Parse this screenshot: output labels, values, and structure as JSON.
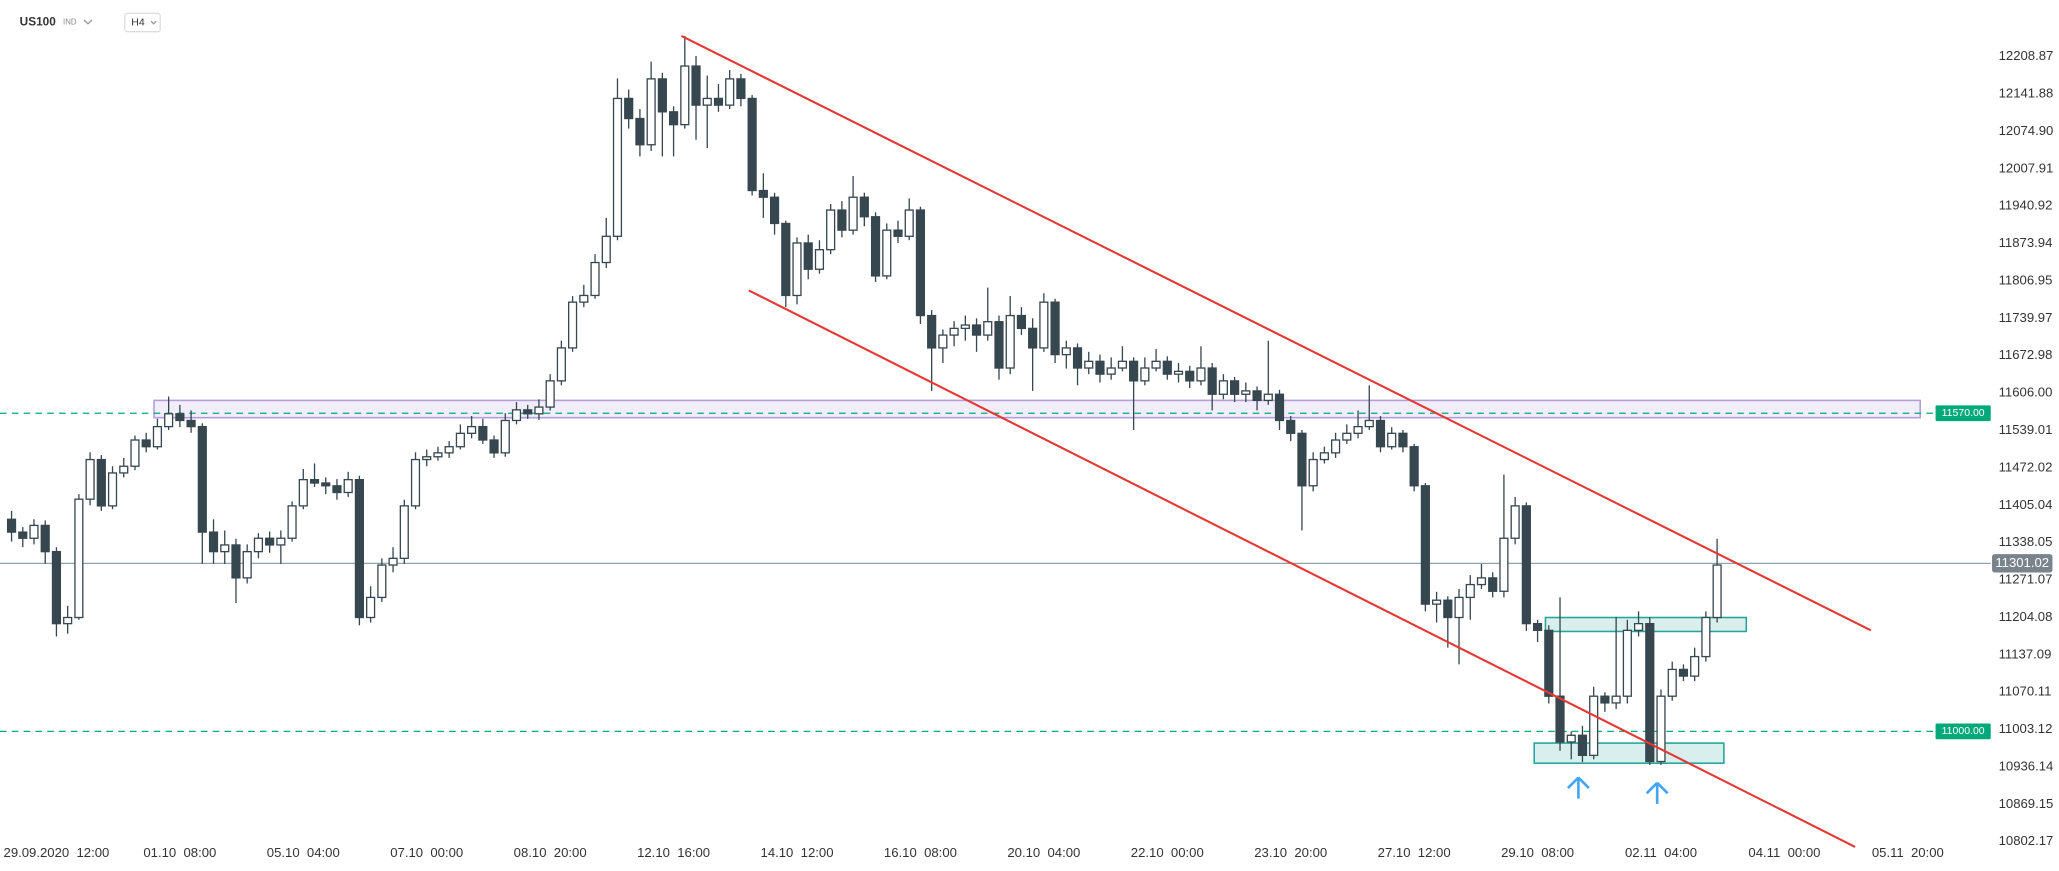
{
  "chart_data": {
    "type": "candlestick",
    "title": "US100",
    "subtitle": "IND",
    "timeframe": "H4",
    "categories": [
      null,
      null,
      null,
      null,
      "29.09.2020  12:00",
      null,
      null,
      null,
      null,
      null,
      null,
      null,
      null,
      null,
      null,
      "01.10  08:00",
      null,
      null,
      null,
      null,
      null,
      null,
      null,
      null,
      null,
      null,
      "05.10  04:00",
      null,
      null,
      null,
      null,
      null,
      null,
      null,
      null,
      null,
      null,
      "07.10  00:00",
      null,
      null,
      null,
      null,
      null,
      null,
      null,
      null,
      null,
      null,
      "08.10  20:00",
      null,
      null,
      null,
      null,
      null,
      null,
      null,
      null,
      null,
      null,
      "12.10  16:00",
      null,
      null,
      null,
      null,
      null,
      null,
      null,
      null,
      null,
      null,
      "14.10  12:00",
      null,
      null,
      null,
      null,
      null,
      null,
      null,
      null,
      null,
      null,
      "16.10  08:00",
      null,
      null,
      null,
      null,
      null,
      null,
      null,
      null,
      null,
      null,
      "20.10  04:00",
      null,
      null,
      null,
      null,
      null,
      null,
      null,
      null,
      null,
      null,
      "22.10  00:00",
      null,
      null,
      null,
      null,
      null,
      null,
      null,
      null,
      null,
      null,
      "23.10  20:00",
      null,
      null,
      null,
      null,
      null,
      null,
      null,
      null,
      null,
      null,
      "27.10  12:00",
      null,
      null,
      null,
      null,
      null,
      null,
      null,
      null,
      null,
      null,
      "29.10  08:00",
      null,
      null,
      null,
      null,
      null,
      null,
      null,
      null,
      null,
      null,
      "02.11  04:00",
      null,
      null,
      null,
      null,
      null,
      null,
      null,
      null,
      null,
      null,
      "04.11  00:00",
      null,
      null,
      null,
      null,
      null,
      null,
      null,
      null,
      null,
      null,
      "05.11  20:00",
      null
    ],
    "values": [
      [
        11380,
        11395,
        11340,
        11357
      ],
      [
        11357,
        11366,
        11330,
        11346
      ],
      [
        11346,
        11380,
        11335,
        11369
      ],
      [
        11369,
        11378,
        11300,
        11322
      ],
      [
        11322,
        11330,
        11170,
        11193
      ],
      [
        11193,
        11225,
        11175,
        11204
      ],
      [
        11204,
        11425,
        11200,
        11416
      ],
      [
        11416,
        11500,
        11405,
        11487
      ],
      [
        11487,
        11495,
        11395,
        11404
      ],
      [
        11404,
        11475,
        11398,
        11463
      ],
      [
        11463,
        11490,
        11455,
        11475
      ],
      [
        11475,
        11530,
        11468,
        11522
      ],
      [
        11522,
        11535,
        11500,
        11510
      ],
      [
        11510,
        11560,
        11505,
        11546
      ],
      [
        11546,
        11600,
        11540,
        11569
      ],
      [
        11569,
        11585,
        11545,
        11557
      ],
      [
        11557,
        11575,
        11535,
        11546
      ],
      [
        11546,
        11552,
        11300,
        11357
      ],
      [
        11357,
        11380,
        11300,
        11322
      ],
      [
        11322,
        11360,
        11300,
        11334
      ],
      [
        11334,
        11345,
        11230,
        11275
      ],
      [
        11275,
        11335,
        11265,
        11322
      ],
      [
        11322,
        11355,
        11310,
        11346
      ],
      [
        11346,
        11358,
        11320,
        11334
      ],
      [
        11334,
        11360,
        11300,
        11346
      ],
      [
        11346,
        11412,
        11340,
        11404
      ],
      [
        11404,
        11470,
        11398,
        11451
      ],
      [
        11451,
        11480,
        11438,
        11445
      ],
      [
        11445,
        11455,
        11425,
        11440
      ],
      [
        11440,
        11452,
        11415,
        11428
      ],
      [
        11428,
        11465,
        11420,
        11451
      ],
      [
        11451,
        11458,
        11190,
        11204
      ],
      [
        11204,
        11260,
        11195,
        11240
      ],
      [
        11240,
        11310,
        11232,
        11298
      ],
      [
        11298,
        11330,
        11285,
        11310
      ],
      [
        11310,
        11415,
        11300,
        11404
      ],
      [
        11404,
        11500,
        11398,
        11487
      ],
      [
        11487,
        11505,
        11475,
        11492
      ],
      [
        11492,
        11510,
        11485,
        11499
      ],
      [
        11499,
        11520,
        11490,
        11510
      ],
      [
        11510,
        11550,
        11505,
        11534
      ],
      [
        11534,
        11565,
        11525,
        11546
      ],
      [
        11546,
        11560,
        11515,
        11522
      ],
      [
        11522,
        11530,
        11490,
        11499
      ],
      [
        11499,
        11570,
        11492,
        11557
      ],
      [
        11557,
        11590,
        11550,
        11576
      ],
      [
        11576,
        11585,
        11560,
        11569
      ],
      [
        11569,
        11595,
        11558,
        11581
      ],
      [
        11581,
        11640,
        11575,
        11628
      ],
      [
        11628,
        11700,
        11620,
        11687
      ],
      [
        11687,
        11780,
        11680,
        11769
      ],
      [
        11769,
        11800,
        11760,
        11781
      ],
      [
        11781,
        11855,
        11775,
        11840
      ],
      [
        11840,
        11920,
        11830,
        11887
      ],
      [
        11887,
        12170,
        11880,
        12134
      ],
      [
        12134,
        12150,
        12080,
        12098
      ],
      [
        12098,
        12115,
        12030,
        12051
      ],
      [
        12051,
        12200,
        12040,
        12169
      ],
      [
        12169,
        12180,
        12030,
        12110
      ],
      [
        12110,
        12120,
        12030,
        12087
      ],
      [
        12087,
        12246,
        12080,
        12192
      ],
      [
        12192,
        12210,
        12060,
        12122
      ],
      [
        12122,
        12175,
        12045,
        12134
      ],
      [
        12134,
        12160,
        12110,
        12122
      ],
      [
        12122,
        12185,
        12115,
        12169
      ],
      [
        12169,
        12178,
        12120,
        12134
      ],
      [
        12134,
        12140,
        11960,
        11969
      ],
      [
        11969,
        12000,
        11920,
        11957
      ],
      [
        11957,
        11965,
        11890,
        11910
      ],
      [
        11910,
        11915,
        11760,
        11781
      ],
      [
        11781,
        11885,
        11765,
        11875
      ],
      [
        11875,
        11890,
        11810,
        11828
      ],
      [
        11828,
        11880,
        11820,
        11863
      ],
      [
        11863,
        11945,
        11855,
        11934
      ],
      [
        11934,
        11950,
        11885,
        11898
      ],
      [
        11898,
        11995,
        11890,
        11957
      ],
      [
        11957,
        11965,
        11905,
        11922
      ],
      [
        11922,
        11930,
        11805,
        11816
      ],
      [
        11816,
        11910,
        11810,
        11898
      ],
      [
        11898,
        11915,
        11875,
        11887
      ],
      [
        11887,
        11955,
        11880,
        11934
      ],
      [
        11934,
        11940,
        11730,
        11745
      ],
      [
        11745,
        11755,
        11610,
        11687
      ],
      [
        11687,
        11720,
        11660,
        11710
      ],
      [
        11710,
        11735,
        11690,
        11722
      ],
      [
        11722,
        11745,
        11700,
        11728
      ],
      [
        11728,
        11740,
        11680,
        11710
      ],
      [
        11710,
        11795,
        11700,
        11734
      ],
      [
        11734,
        11745,
        11630,
        11651
      ],
      [
        11651,
        11780,
        11640,
        11745
      ],
      [
        11745,
        11760,
        11710,
        11722
      ],
      [
        11722,
        11740,
        11610,
        11687
      ],
      [
        11687,
        11785,
        11680,
        11769
      ],
      [
        11769,
        11775,
        11660,
        11675
      ],
      [
        11675,
        11700,
        11650,
        11687
      ],
      [
        11687,
        11695,
        11620,
        11651
      ],
      [
        11651,
        11680,
        11640,
        11663
      ],
      [
        11663,
        11675,
        11625,
        11640
      ],
      [
        11640,
        11670,
        11630,
        11651
      ],
      [
        11651,
        11690,
        11645,
        11663
      ],
      [
        11663,
        11670,
        11540,
        11628
      ],
      [
        11628,
        11670,
        11620,
        11651
      ],
      [
        11651,
        11685,
        11645,
        11663
      ],
      [
        11663,
        11672,
        11630,
        11640
      ],
      [
        11640,
        11660,
        11625,
        11645
      ],
      [
        11645,
        11655,
        11615,
        11628
      ],
      [
        11628,
        11690,
        11620,
        11651
      ],
      [
        11651,
        11660,
        11575,
        11604
      ],
      [
        11604,
        11640,
        11595,
        11628
      ],
      [
        11628,
        11635,
        11590,
        11604
      ],
      [
        11604,
        11625,
        11590,
        11610
      ],
      [
        11610,
        11618,
        11575,
        11593
      ],
      [
        11593,
        11700,
        11585,
        11604
      ],
      [
        11604,
        11612,
        11540,
        11557
      ],
      [
        11557,
        11565,
        11520,
        11534
      ],
      [
        11534,
        11540,
        11360,
        11440
      ],
      [
        11440,
        11500,
        11430,
        11487
      ],
      [
        11487,
        11510,
        11480,
        11499
      ],
      [
        11499,
        11535,
        11490,
        11522
      ],
      [
        11522,
        11550,
        11515,
        11534
      ],
      [
        11534,
        11575,
        11525,
        11546
      ],
      [
        11546,
        11620,
        11540,
        11557
      ],
      [
        11557,
        11565,
        11500,
        11510
      ],
      [
        11510,
        11545,
        11505,
        11534
      ],
      [
        11534,
        11540,
        11500,
        11510
      ],
      [
        11510,
        11515,
        11430,
        11440
      ],
      [
        11440,
        11445,
        11215,
        11228
      ],
      [
        11228,
        11250,
        11195,
        11235
      ],
      [
        11235,
        11242,
        11150,
        11204
      ],
      [
        11204,
        11255,
        11120,
        11240
      ],
      [
        11240,
        11280,
        11200,
        11263
      ],
      [
        11263,
        11300,
        11255,
        11275
      ],
      [
        11275,
        11285,
        11240,
        11251
      ],
      [
        11251,
        11460,
        11240,
        11346
      ],
      [
        11346,
        11420,
        11335,
        11404
      ],
      [
        11404,
        11410,
        11180,
        11193
      ],
      [
        11193,
        11200,
        11160,
        11181
      ],
      [
        11181,
        11190,
        11050,
        11063
      ],
      [
        11063,
        11240,
        10965,
        10981
      ],
      [
        10981,
        11000,
        10950,
        10993
      ],
      [
        10993,
        11010,
        10945,
        10957
      ],
      [
        10957,
        11080,
        10950,
        11063
      ],
      [
        11063,
        11070,
        11035,
        11051
      ],
      [
        11051,
        11205,
        11040,
        11063
      ],
      [
        11063,
        11200,
        11050,
        11181
      ],
      [
        11181,
        11215,
        11170,
        11193
      ],
      [
        11193,
        11205,
        10940,
        10946
      ],
      [
        10946,
        11075,
        10940,
        11063
      ],
      [
        11063,
        11125,
        11055,
        11111
      ],
      [
        11111,
        11120,
        11090,
        11099
      ],
      [
        11099,
        11150,
        11090,
        11134
      ],
      [
        11134,
        11215,
        11125,
        11204
      ],
      [
        11204,
        11345,
        11195,
        11298
      ],
      null,
      null,
      null,
      null,
      null,
      null,
      null,
      null,
      null,
      null,
      null,
      null,
      null,
      null,
      null,
      null,
      null,
      null
    ],
    "up_color": "#ffffff",
    "down_color": "#37474f",
    "ylim": [
      10769,
      12310
    ],
    "yticks": [
      12208.87,
      12141.88,
      {
        "value": 12074.9,
        "label": "12074.90"
      },
      12007.91,
      11940.92,
      11873.94,
      11806.95,
      11739.97,
      11672.98,
      {
        "value": 11606,
        "label": "11606.00"
      },
      11539.01,
      11472.02,
      11405.04,
      11338.05,
      11271.07,
      11204.08,
      11137.09,
      11070.11,
      11003.12,
      10936.14,
      10869.15,
      10802.17
    ],
    "grid": false,
    "levels": [
      {
        "value": 11570,
        "label": "11570.00"
      },
      {
        "value": 11000,
        "label": "11000.00"
      }
    ],
    "level_color": "#00a97a",
    "last_price": 11301.02,
    "trendlines": [
      [
        [
          59.7,
          12246
        ],
        [
          165.7,
          11181
        ]
      ],
      [
        [
          65.7,
          11790
        ],
        [
          164.3,
          10793
        ]
      ]
    ],
    "trendline_color": "#e53935",
    "zones": [
      {
        "x": [
          12.7,
          170.1
        ],
        "y": [
          11562,
          11593
        ],
        "color": "#b39ddb"
      },
      {
        "x": [
          136.7,
          154.6
        ],
        "y": [
          11179,
          11204
        ],
        "color": "#26a69a"
      },
      {
        "x": [
          135.7,
          152.6
        ],
        "y": [
          10943,
          10979
        ],
        "color": "#26a69a"
      }
    ]
  }
}
